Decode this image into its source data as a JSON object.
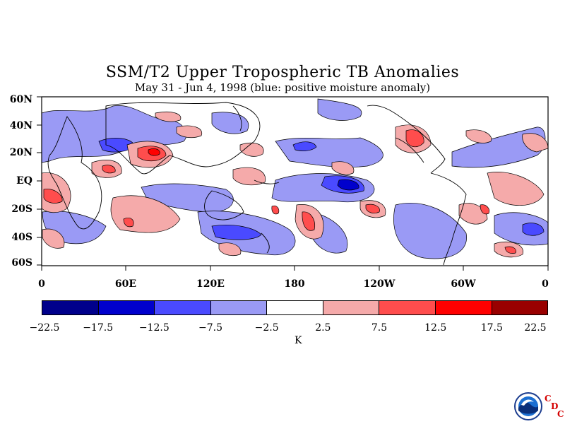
{
  "title": "SSM/T2 Upper Tropospheric TB Anomalies",
  "subtitle": "May 31 - Jun 4, 1998 (blue: positive moisture anomaly)",
  "lat_labels": [
    "60N",
    "40N",
    "20N",
    "EQ",
    "20S",
    "40S",
    "60S"
  ],
  "lon_labels": [
    "0",
    "60E",
    "120E",
    "180",
    "120W",
    "60W",
    "0"
  ],
  "colorbar": {
    "colors": [
      "#00008b",
      "#0000cd",
      "#4a4aff",
      "#9a9af5",
      "#ffffff",
      "#f5aaaa",
      "#ff4d4d",
      "#ff0000",
      "#990000"
    ],
    "labels": [
      "-22.5",
      "-17.5",
      "-12.5",
      "-7.5",
      "-2.5",
      "2.5",
      "7.5",
      "12.5",
      "17.5",
      "22.5"
    ],
    "unit": "K"
  },
  "logo": {
    "name": "NOAA",
    "cdc": [
      "C",
      "D",
      "C"
    ]
  }
}
